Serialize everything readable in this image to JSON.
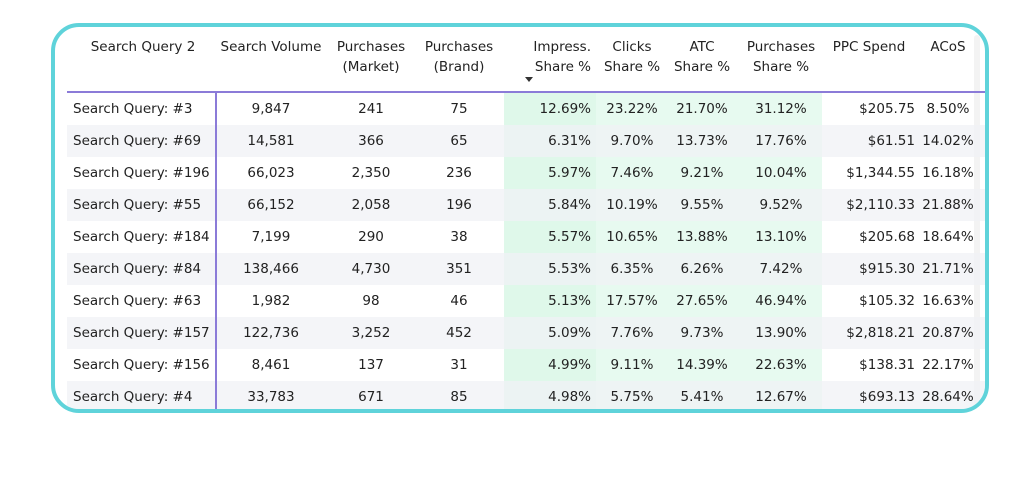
{
  "table": {
    "columns": [
      {
        "key": "query",
        "lines": [
          "Search Query 2"
        ]
      },
      {
        "key": "volume",
        "lines": [
          "Search Volume"
        ]
      },
      {
        "key": "purch_market",
        "lines": [
          "Purchases",
          "(Market)"
        ]
      },
      {
        "key": "purch_brand",
        "lines": [
          "Purchases",
          "(Brand)"
        ]
      },
      {
        "key": "impress_share",
        "lines": [
          "Impress.",
          "Share %"
        ]
      },
      {
        "key": "clicks_share",
        "lines": [
          "Clicks",
          "Share %"
        ]
      },
      {
        "key": "atc_share",
        "lines": [
          "ATC",
          "Share %"
        ]
      },
      {
        "key": "purch_share",
        "lines": [
          "Purchases",
          "Share %"
        ]
      },
      {
        "key": "ppc_spend",
        "lines": [
          "PPC Spend"
        ]
      },
      {
        "key": "acos",
        "lines": [
          "ACoS"
        ]
      }
    ],
    "sorted_column": "impress_share",
    "sort_direction": "descending",
    "rows": [
      [
        "Search Query: #3",
        "9,847",
        "241",
        "75",
        "12.69%",
        "23.22%",
        "21.70%",
        "31.12%",
        "$205.75",
        "8.50%"
      ],
      [
        "Search Query: #69",
        "14,581",
        "366",
        "65",
        "6.31%",
        "9.70%",
        "13.73%",
        "17.76%",
        "$61.51",
        "14.02%"
      ],
      [
        "Search Query: #196",
        "66,023",
        "2,350",
        "236",
        "5.97%",
        "7.46%",
        "9.21%",
        "10.04%",
        "$1,344.55",
        "16.18%"
      ],
      [
        "Search Query: #55",
        "66,152",
        "2,058",
        "196",
        "5.84%",
        "10.19%",
        "9.55%",
        "9.52%",
        "$2,110.33",
        "21.88%"
      ],
      [
        "Search Query: #184",
        "7,199",
        "290",
        "38",
        "5.57%",
        "10.65%",
        "13.88%",
        "13.10%",
        "$205.68",
        "18.64%"
      ],
      [
        "Search Query: #84",
        "138,466",
        "4,730",
        "351",
        "5.53%",
        "6.35%",
        "6.26%",
        "7.42%",
        "$915.30",
        "21.71%"
      ],
      [
        "Search Query: #63",
        "1,982",
        "98",
        "46",
        "5.13%",
        "17.57%",
        "27.65%",
        "46.94%",
        "$105.32",
        "16.63%"
      ],
      [
        "Search Query: #157",
        "122,736",
        "3,252",
        "452",
        "5.09%",
        "7.76%",
        "9.73%",
        "13.90%",
        "$2,818.21",
        "20.87%"
      ],
      [
        "Search Query: #156",
        "8,461",
        "137",
        "31",
        "4.99%",
        "9.11%",
        "14.39%",
        "22.63%",
        "$138.31",
        "22.17%"
      ],
      [
        "Search Query: #4",
        "33,783",
        "671",
        "85",
        "4.98%",
        "5.75%",
        "5.41%",
        "12.67%",
        "$693.13",
        "28.64%"
      ]
    ]
  },
  "colors": {
    "frame": "#5fd3da",
    "accent_rule": "#8b7bd8",
    "share_highlight": "#e7faf0",
    "row_stripe": "#f0f1f5"
  }
}
